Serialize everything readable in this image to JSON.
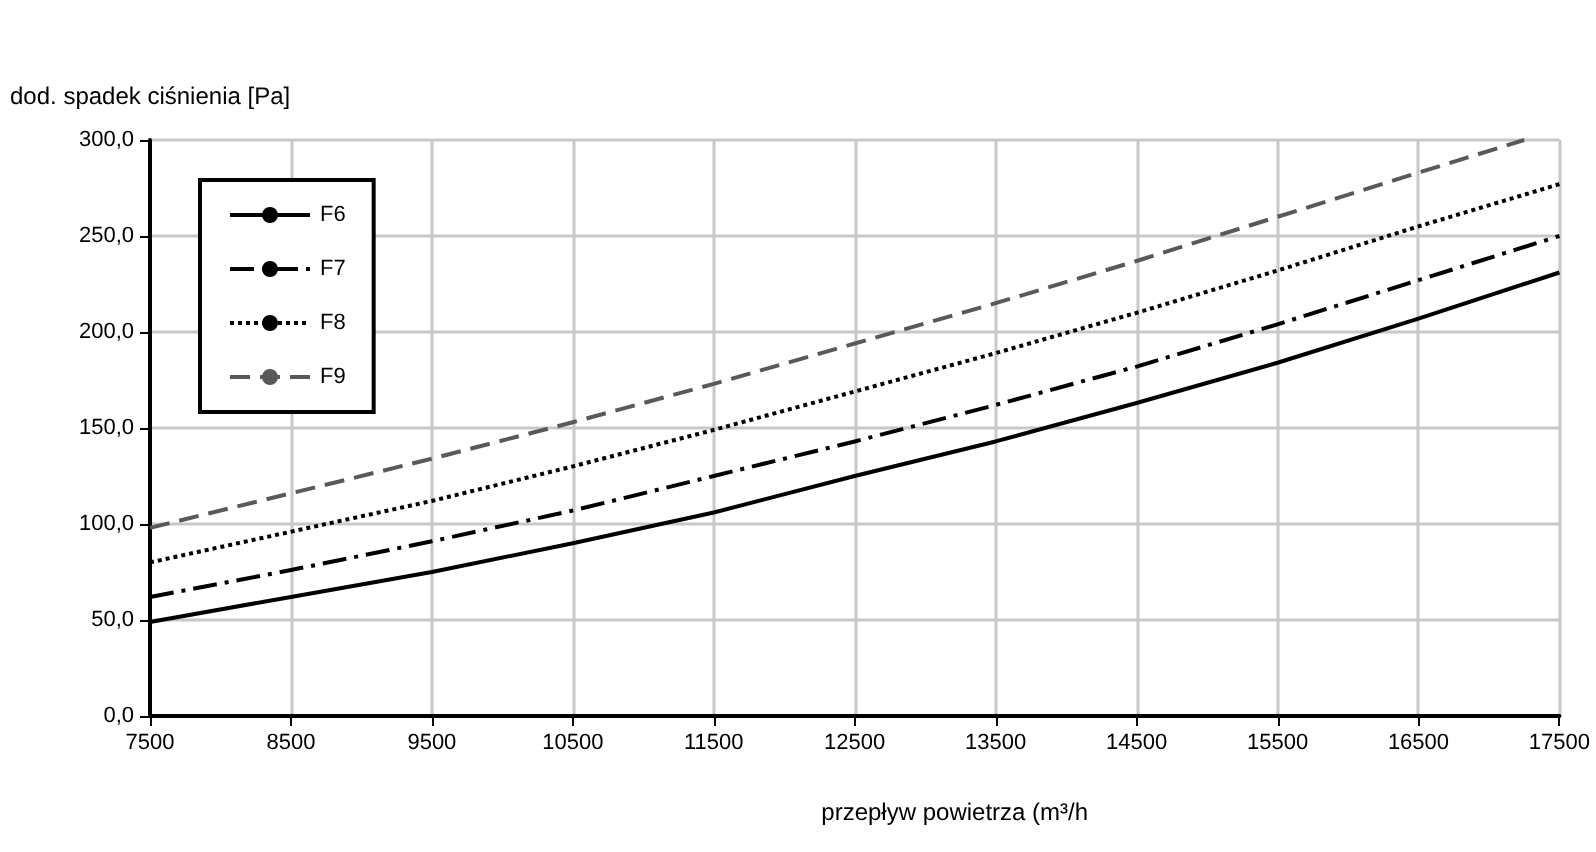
{
  "chart_data": {
    "type": "line",
    "xlabel": "przepływ powietrza (m³/h",
    "ylabel": "dod. spadek ciśnienia [Pa]",
    "x": [
      7500,
      8500,
      9500,
      10500,
      11500,
      12500,
      13500,
      14500,
      15500,
      16500,
      17500
    ],
    "series": [
      {
        "name": "F6",
        "color": "#000000",
        "line_style": "solid",
        "values": [
          49,
          62,
          75,
          90,
          106,
          125,
          143,
          163,
          184,
          207,
          231
        ]
      },
      {
        "name": "F7",
        "color": "#000000",
        "line_style": "dashdot",
        "values": [
          62,
          76,
          91,
          107,
          125,
          143,
          162,
          182,
          204,
          227,
          250
        ]
      },
      {
        "name": "F8",
        "color": "#000000",
        "line_style": "dotted",
        "values": [
          80,
          96,
          112,
          130,
          149,
          169,
          189,
          210,
          232,
          255,
          277
        ]
      },
      {
        "name": "F9",
        "color": "#595959",
        "line_style": "dashed",
        "x": [
          7500,
          8500,
          9500,
          10500,
          11500,
          12500,
          13500,
          14500,
          15500,
          16500,
          17250
        ],
        "values": [
          98,
          116,
          134,
          153,
          173,
          194,
          215,
          237,
          260,
          283,
          300
        ]
      }
    ],
    "xlim": [
      7500,
      17500
    ],
    "xticks": [
      7500,
      8500,
      9500,
      10500,
      11500,
      12500,
      13500,
      14500,
      15500,
      16500,
      17500
    ],
    "ylim": [
      0,
      300
    ],
    "yticks": [
      {
        "value": 0,
        "label": "0,0"
      },
      {
        "value": 50,
        "label": "50,0"
      },
      {
        "value": 100,
        "label": "100,0"
      },
      {
        "value": 150,
        "label": "150,0"
      },
      {
        "value": 200,
        "label": "200,0"
      },
      {
        "value": 250,
        "label": "250,0"
      },
      {
        "value": 300,
        "label": "300,0"
      }
    ],
    "grid": true,
    "legend": "top left",
    "marker": "none"
  }
}
